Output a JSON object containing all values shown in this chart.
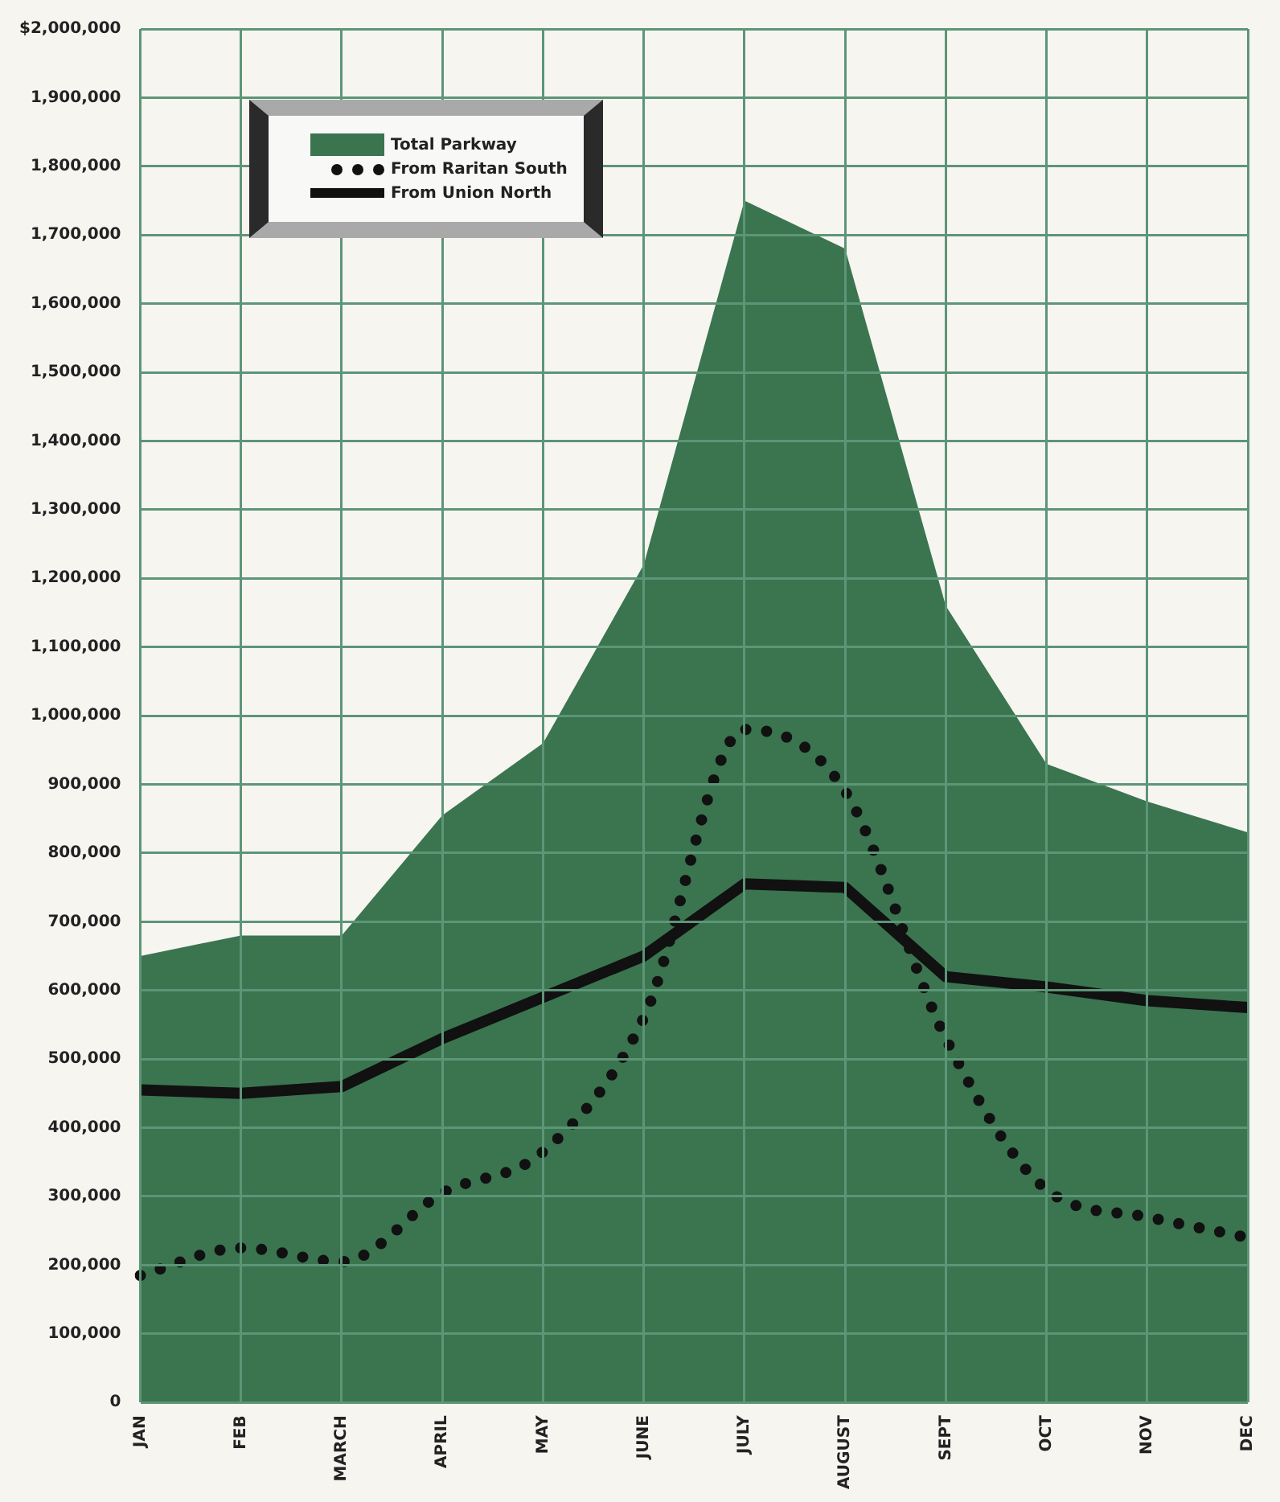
{
  "chart_data": {
    "type": "area",
    "categories": [
      "JAN",
      "FEB",
      "MARCH",
      "APRIL",
      "MAY",
      "JUNE",
      "JULY",
      "AUGUST",
      "SEPT",
      "OCT",
      "NOV",
      "DEC"
    ],
    "series": [
      {
        "name": "Total Parkway",
        "type": "area",
        "color": "#3a7550",
        "values": [
          650000,
          680000,
          680000,
          855000,
          960000,
          1220000,
          1750000,
          1680000,
          1160000,
          930000,
          875000,
          830000
        ]
      },
      {
        "name": "From Raritan South",
        "type": "line",
        "line_style": "dotted",
        "color": "#111111",
        "values": [
          185000,
          225000,
          205000,
          305000,
          365000,
          560000,
          980000,
          890000,
          530000,
          310000,
          270000,
          240000
        ]
      },
      {
        "name": "From Union North",
        "type": "line",
        "line_style": "solid",
        "color": "#111111",
        "values": [
          455000,
          450000,
          460000,
          530000,
          590000,
          650000,
          755000,
          750000,
          620000,
          605000,
          585000,
          575000
        ]
      }
    ],
    "ylim": [
      0,
      2000000
    ],
    "yticks": [
      {
        "value": 0,
        "label": "0"
      },
      {
        "value": 100000,
        "label": "100,000"
      },
      {
        "value": 200000,
        "label": "200,000"
      },
      {
        "value": 300000,
        "label": "300,000"
      },
      {
        "value": 400000,
        "label": "400,000"
      },
      {
        "value": 500000,
        "label": "500,000"
      },
      {
        "value": 600000,
        "label": "600,000"
      },
      {
        "value": 700000,
        "label": "700,000"
      },
      {
        "value": 800000,
        "label": "800,000"
      },
      {
        "value": 900000,
        "label": "900,000"
      },
      {
        "value": 1000000,
        "label": "1,000,000"
      },
      {
        "value": 1100000,
        "label": "1,100,000"
      },
      {
        "value": 1200000,
        "label": "1,200,000"
      },
      {
        "value": 1300000,
        "label": "1,300,000"
      },
      {
        "value": 1400000,
        "label": "1,400,000"
      },
      {
        "value": 1500000,
        "label": "1,500,000"
      },
      {
        "value": 1600000,
        "label": "1,600,000"
      },
      {
        "value": 1700000,
        "label": "1,700,000"
      },
      {
        "value": 1800000,
        "label": "1,800,000"
      },
      {
        "value": 1900000,
        "label": "1,900,000"
      },
      {
        "value": 2000000,
        "label": "$2,000,000"
      }
    ],
    "grid": true,
    "legend": "top left"
  }
}
